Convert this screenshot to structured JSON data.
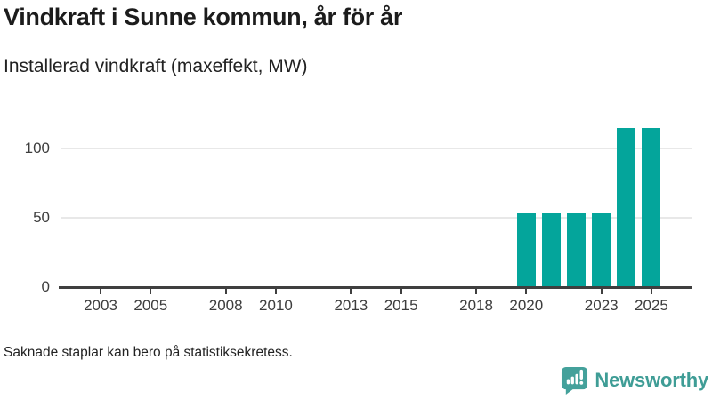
{
  "header": {
    "title": "Vindkraft i Sunne kommun, år för år",
    "subtitle": "Installerad vindkraft (maxeffekt, MW)"
  },
  "footer": {
    "note": "Saknade staplar kan bero på statistiksekretess.",
    "brand": "Newsworthy"
  },
  "colors": {
    "bar": "#04a59b",
    "brand_icon": "#44a19b",
    "brand_text": "#3f9d96",
    "axis": "#3f3f3f",
    "grid": "#e8e8e8",
    "title_text": "#1c1c1c"
  },
  "chart_data": {
    "type": "bar",
    "title": "Vindkraft i Sunne kommun, år för år",
    "subtitle": "Installerad vindkraft (maxeffekt, MW)",
    "ylabel": "Installerad vindkraft (maxeffekt, MW)",
    "xlabel": "",
    "unit": "MW",
    "bars": [
      {
        "year": 2020,
        "value": 53
      },
      {
        "year": 2021,
        "value": 53
      },
      {
        "year": 2022,
        "value": 53
      },
      {
        "year": 2023,
        "value": 53
      },
      {
        "year": 2024,
        "value": 115
      },
      {
        "year": 2025,
        "value": 115
      }
    ],
    "missing_bar_years": "2002-2019 (no bars shown)",
    "x_ticks": [
      2003,
      2005,
      2008,
      2010,
      2013,
      2015,
      2018,
      2020,
      2023,
      2025
    ],
    "y_ticks": [
      0,
      50,
      100
    ],
    "xlim": [
      2001.4,
      2026.6
    ],
    "ylim": [
      0,
      120
    ],
    "grid": "horizontal",
    "legend": "none",
    "annotation": "Saknade staplar kan bero på statistiksekretess."
  }
}
